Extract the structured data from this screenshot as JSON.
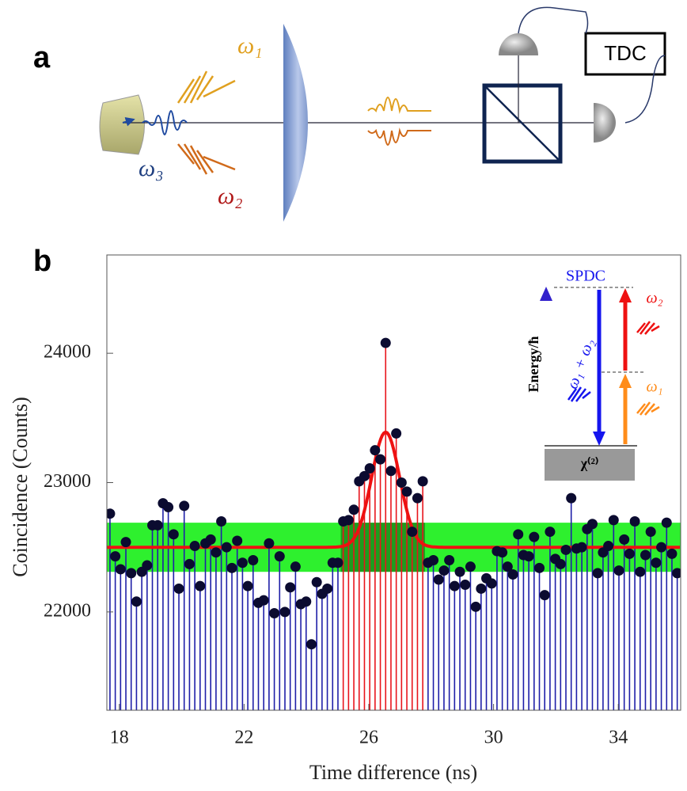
{
  "panel_a": {
    "label": "a",
    "omega1": "ω₁",
    "omega2": "ω₂",
    "omega3": "ω₃",
    "tdc": "TDC"
  },
  "chart_data": {
    "type": "stem",
    "panel_label": "b",
    "x_label": "Time difference (ns)",
    "y_label": "Coincidence (Counts)",
    "xlim": [
      17.6,
      36.0
    ],
    "xticks": [
      18,
      22,
      26,
      30,
      34
    ],
    "ylim": [
      21240,
      24760
    ],
    "yticks": [
      22000,
      23000,
      24000
    ],
    "color": "#1f1fa8",
    "marker_color": "#0b0b30",
    "highlight": {
      "xlim": [
        25.1,
        27.8
      ],
      "color": "#e8141c"
    },
    "band": {
      "range": [
        22310,
        22690
      ],
      "color": "#2ef02e"
    },
    "fit": {
      "baseline": 22500,
      "amplitude": 890,
      "center": 26.54,
      "sigma": 0.45,
      "color": "#ee1111"
    },
    "x": [
      17.7,
      17.87,
      18.04,
      18.21,
      18.38,
      18.55,
      18.72,
      18.89,
      19.06,
      19.23,
      19.4,
      19.57,
      19.74,
      19.91,
      20.08,
      20.25,
      20.42,
      20.59,
      20.76,
      20.93,
      21.1,
      21.27,
      21.44,
      21.61,
      21.78,
      21.95,
      22.12,
      22.29,
      22.46,
      22.63,
      22.8,
      22.97,
      23.14,
      23.31,
      23.48,
      23.65,
      23.82,
      23.99,
      24.16,
      24.33,
      24.5,
      24.67,
      24.84,
      25.01,
      25.18,
      25.35,
      25.52,
      25.69,
      25.86,
      26.03,
      26.2,
      26.37,
      26.54,
      26.71,
      26.88,
      27.05,
      27.22,
      27.39,
      27.56,
      27.73,
      27.9,
      28.07,
      28.24,
      28.41,
      28.58,
      28.75,
      28.92,
      29.09,
      29.26,
      29.43,
      29.6,
      29.77,
      29.94,
      30.11,
      30.28,
      30.45,
      30.62,
      30.79,
      30.96,
      31.13,
      31.3,
      31.47,
      31.64,
      31.81,
      31.98,
      32.15,
      32.32,
      32.49,
      32.66,
      32.83,
      33.0,
      33.17,
      33.34,
      33.51,
      33.68,
      33.85,
      34.02,
      34.19,
      34.36,
      34.53,
      34.7,
      34.87,
      35.04,
      35.21,
      35.38,
      35.55,
      35.72,
      35.89
    ],
    "values": [
      22760,
      22430,
      22330,
      22540,
      22300,
      22080,
      22310,
      22360,
      22670,
      22670,
      22840,
      22810,
      22600,
      22180,
      22820,
      22370,
      22510,
      22200,
      22530,
      22560,
      22460,
      22700,
      22500,
      22340,
      22550,
      22380,
      22200,
      22400,
      22070,
      22090,
      22530,
      21990,
      22430,
      22000,
      22190,
      22350,
      22060,
      22080,
      21750,
      22230,
      22140,
      22180,
      22380,
      22380,
      22700,
      22710,
      22790,
      23010,
      23050,
      23110,
      23250,
      23180,
      24080,
      23090,
      23380,
      23000,
      22930,
      22620,
      22880,
      23010,
      22380,
      22400,
      22250,
      22320,
      22400,
      22200,
      22310,
      22210,
      22350,
      22040,
      22180,
      22260,
      22220,
      22470,
      22460,
      22350,
      22290,
      22600,
      22440,
      22430,
      22580,
      22340,
      22130,
      22620,
      22410,
      22370,
      22480,
      22880,
      22490,
      22500,
      22640,
      22680,
      22300,
      22460,
      22510,
      22710,
      22320,
      22560,
      22450,
      22700,
      22310,
      22440,
      22620,
      22380,
      22500,
      22690,
      22450,
      22300
    ],
    "inset": {
      "process": "SPDC",
      "axis": "Energy/ħ",
      "sum": "ω₁ + ω₂",
      "omega1": "ω₁",
      "omega2": "ω₂",
      "crystal": "χ⁽²⁾"
    }
  }
}
